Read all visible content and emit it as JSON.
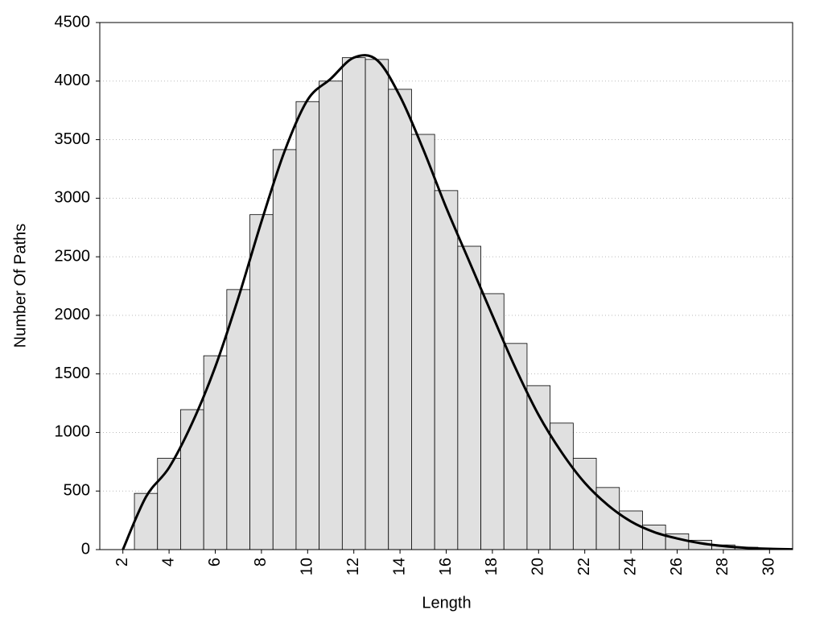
{
  "chart_data": {
    "type": "histogram",
    "xlabel": "Length",
    "ylabel": "Number Of Paths",
    "bins": [
      2.5,
      3.5,
      4.5,
      5.5,
      6.5,
      7.5,
      8.5,
      9.5,
      10.5,
      11.5,
      12.5,
      13.5,
      14.5,
      15.5,
      16.5,
      17.5,
      18.5,
      19.5,
      20.5,
      21.5,
      22.5,
      23.5,
      24.5,
      25.5,
      26.5,
      27.5,
      28.5,
      29.5,
      30.5
    ],
    "counts": [
      480,
      780,
      1195,
      1655,
      2220,
      2860,
      3415,
      3825,
      4000,
      4200,
      4185,
      3930,
      3545,
      3065,
      2590,
      2185,
      1760,
      1400,
      1080,
      780,
      530,
      330,
      210,
      135,
      80,
      40,
      20,
      10
    ],
    "color": "#e0e0e0",
    "line": {
      "color": "#000000",
      "x": [
        2,
        3,
        4,
        5,
        6,
        7,
        8,
        9,
        10,
        11,
        12,
        13,
        14,
        15,
        16,
        17,
        18,
        19,
        20,
        21,
        22,
        23,
        24,
        25,
        26,
        27,
        28,
        29,
        30,
        31
      ],
      "values": [
        0,
        450,
        700,
        1080,
        1560,
        2150,
        2800,
        3400,
        3840,
        4020,
        4200,
        4180,
        3870,
        3420,
        2920,
        2460,
        2000,
        1550,
        1150,
        830,
        570,
        380,
        240,
        150,
        95,
        55,
        30,
        15,
        7,
        3
      ]
    },
    "xlim": [
      1,
      31
    ],
    "ylim": [
      0,
      4500
    ],
    "xticks": [
      2,
      4,
      6,
      8,
      10,
      12,
      14,
      16,
      18,
      20,
      22,
      24,
      26,
      28,
      30
    ],
    "yticks": [
      0,
      500,
      1000,
      1500,
      2000,
      2500,
      3000,
      3500,
      4000,
      4500
    ],
    "grid": true
  }
}
